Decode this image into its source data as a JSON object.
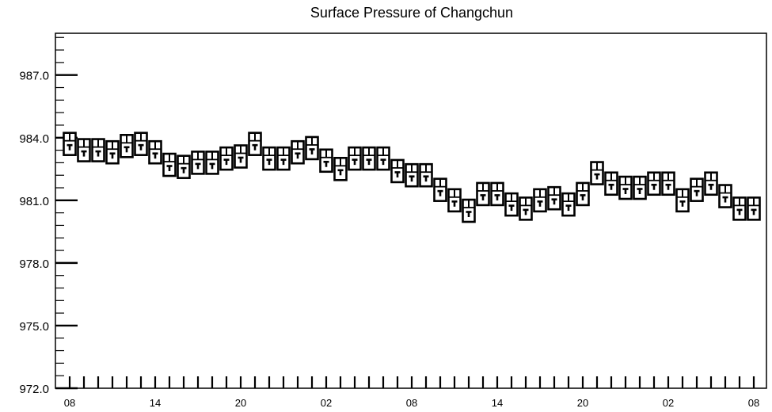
{
  "chart_data": {
    "type": "line",
    "title": "Surface Pressure of Changchun",
    "xlabel": "",
    "ylabel": "",
    "ylim": [
      972.0,
      989.0
    ],
    "yticks": [
      "972.0",
      "975.0",
      "978.0",
      "981.0",
      "984.0",
      "987.0"
    ],
    "xticks": [
      "08",
      "14",
      "20",
      "02",
      "08",
      "14",
      "20",
      "02",
      "08"
    ],
    "step_hours": 1,
    "grid": false,
    "marker": "boxplot",
    "series": [
      {
        "values": [
          983.7,
          983.4,
          983.4,
          983.3,
          983.6,
          983.7,
          983.3,
          982.7,
          982.6,
          982.8,
          982.8,
          983.0,
          983.1,
          983.7,
          983.0,
          983.0,
          983.3,
          983.5,
          982.9,
          982.5,
          983.0,
          983.0,
          983.0,
          982.4,
          982.2,
          982.2,
          981.5,
          981.0,
          980.5,
          981.3,
          981.3,
          980.8,
          980.6,
          981.0,
          981.1,
          980.8,
          981.3,
          982.3,
          981.8,
          981.6,
          981.6,
          981.8,
          981.8,
          981.0,
          981.5,
          981.8,
          981.2,
          980.6,
          980.6
        ]
      }
    ]
  }
}
